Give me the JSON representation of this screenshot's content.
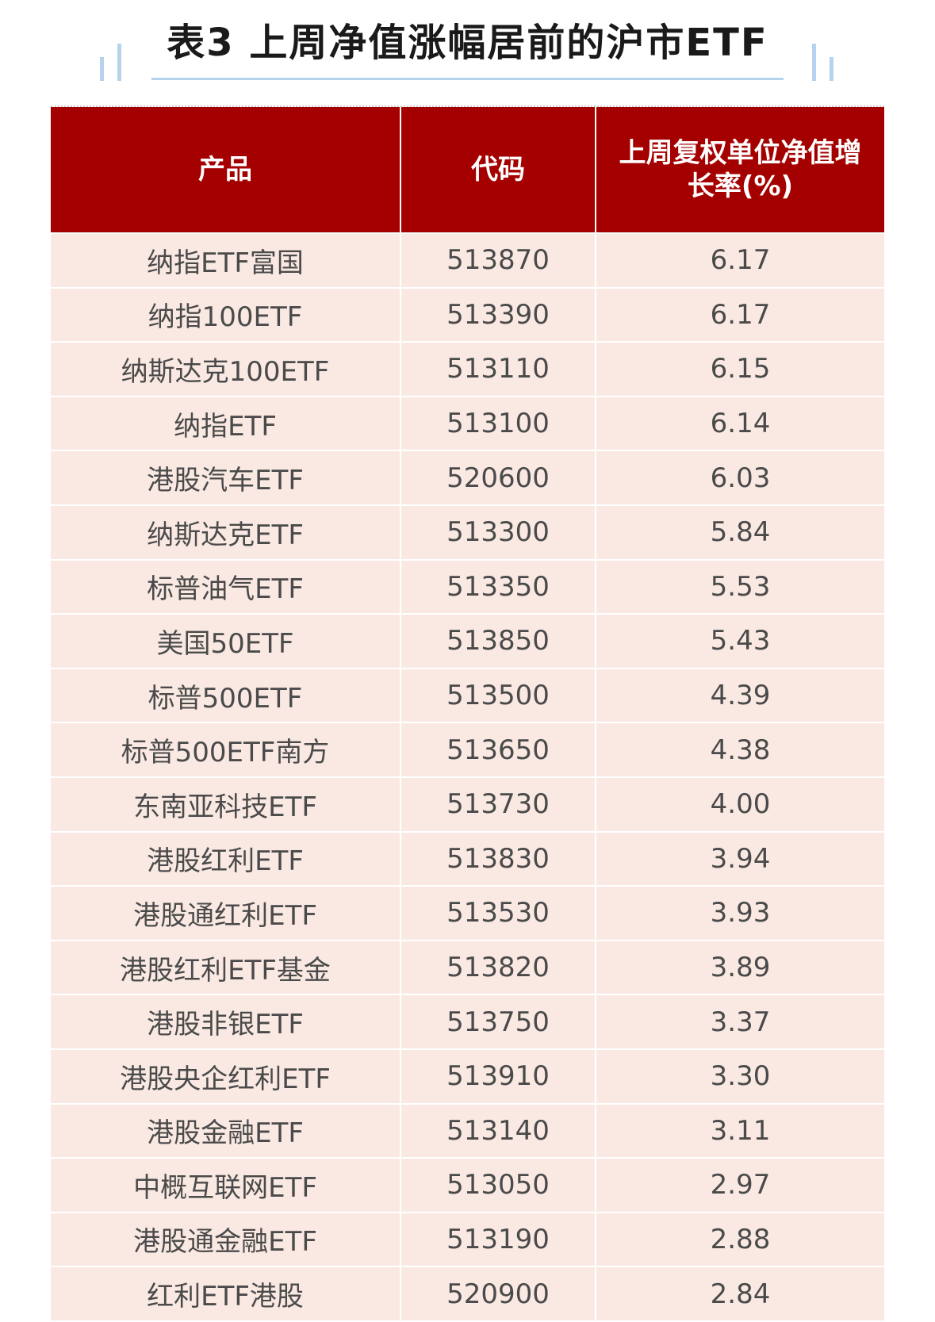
{
  "title": "表3 上周净值涨幅居前的沪市ETF",
  "colors": {
    "header_bg": "#a50000",
    "row_bg": "#fae9e3",
    "accent": "#b5d3ec"
  },
  "table": {
    "headers": [
      "产品",
      "代码",
      "上周复权单位净值增长率(%)"
    ],
    "rows": [
      [
        "纳指ETF富国",
        "513870",
        "6.17"
      ],
      [
        "纳指100ETF",
        "513390",
        "6.17"
      ],
      [
        "纳斯达克100ETF",
        "513110",
        "6.15"
      ],
      [
        "纳指ETF",
        "513100",
        "6.14"
      ],
      [
        "港股汽车ETF",
        "520600",
        "6.03"
      ],
      [
        "纳斯达克ETF",
        "513300",
        "5.84"
      ],
      [
        "标普油气ETF",
        "513350",
        "5.53"
      ],
      [
        "美国50ETF",
        "513850",
        "5.43"
      ],
      [
        "标普500ETF",
        "513500",
        "4.39"
      ],
      [
        "标普500ETF南方",
        "513650",
        "4.38"
      ],
      [
        "东南亚科技ETF",
        "513730",
        "4.00"
      ],
      [
        "港股红利ETF",
        "513830",
        "3.94"
      ],
      [
        "港股通红利ETF",
        "513530",
        "3.93"
      ],
      [
        "港股红利ETF基金",
        "513820",
        "3.89"
      ],
      [
        "港股非银ETF",
        "513750",
        "3.37"
      ],
      [
        "港股央企红利ETF",
        "513910",
        "3.30"
      ],
      [
        "港股金融ETF",
        "513140",
        "3.11"
      ],
      [
        "中概互联网ETF",
        "513050",
        "2.97"
      ],
      [
        "港股通金融ETF",
        "513190",
        "2.88"
      ],
      [
        "红利ETF港股",
        "520900",
        "2.84"
      ]
    ]
  }
}
